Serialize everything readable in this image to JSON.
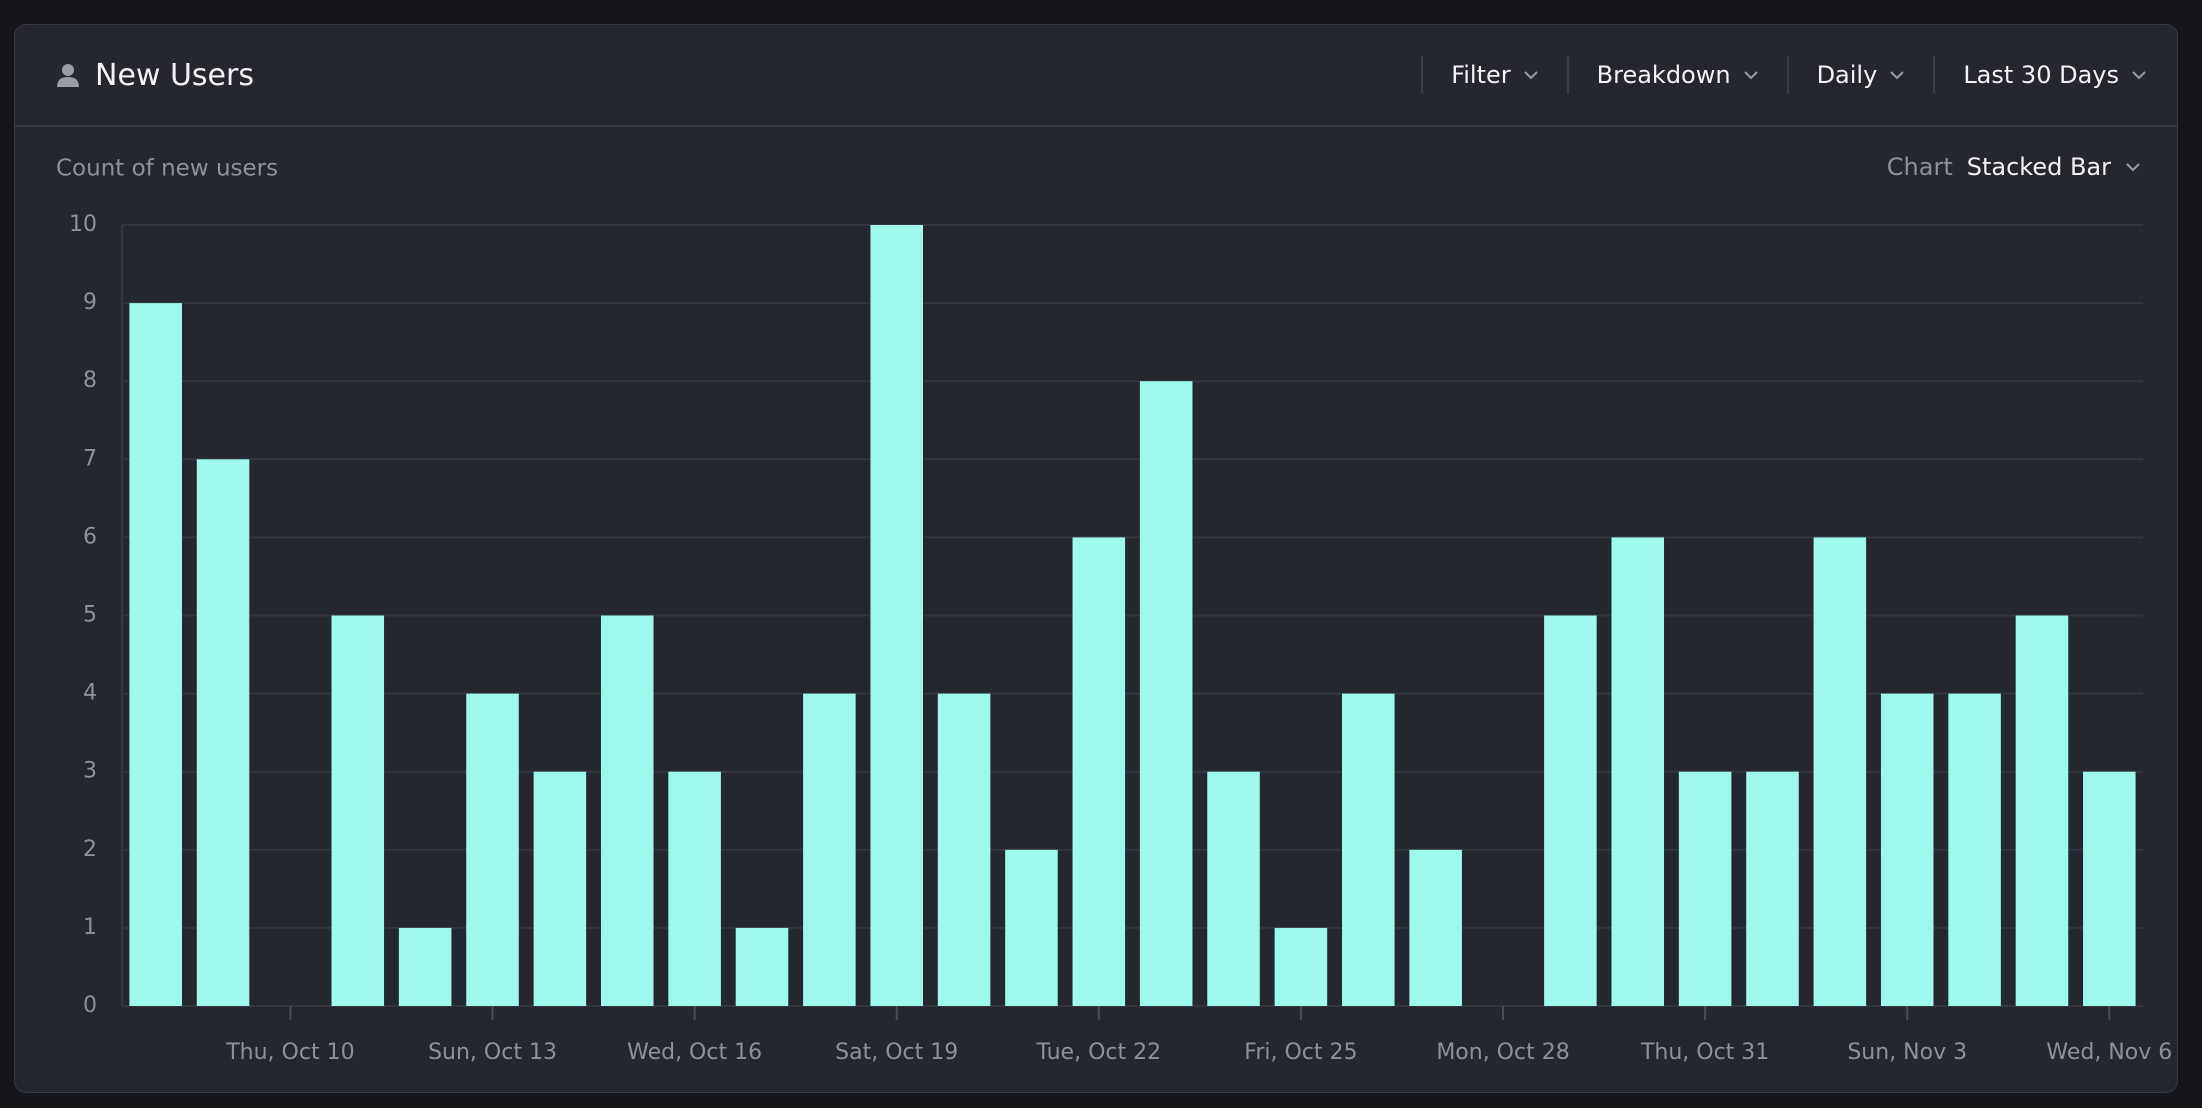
{
  "header": {
    "title": "New Users",
    "controls": [
      "Filter",
      "Breakdown",
      "Daily",
      "Last 30 Days"
    ]
  },
  "chart_selector": {
    "label": "Chart",
    "value": "Stacked Bar"
  },
  "chart_data": {
    "type": "bar",
    "title": "Count of new users",
    "categories": [
      null,
      null,
      "Thu, Oct 10",
      null,
      null,
      "Sun, Oct 13",
      null,
      null,
      "Wed, Oct 16",
      null,
      null,
      "Sat, Oct 19",
      null,
      null,
      "Tue, Oct 22",
      null,
      null,
      "Fri, Oct 25",
      null,
      null,
      "Mon, Oct 28",
      null,
      null,
      "Thu, Oct 31",
      null,
      null,
      "Sun, Nov 3",
      null,
      null,
      "Wed, Nov 6"
    ],
    "values": [
      9,
      7,
      0,
      5,
      1,
      4,
      3,
      5,
      3,
      1,
      4,
      10,
      4,
      2,
      6,
      8,
      3,
      1,
      4,
      2,
      0,
      5,
      6,
      3,
      3,
      6,
      4,
      4,
      5,
      3
    ],
    "color": "#9ef9ec",
    "ylim": [
      0,
      10
    ],
    "yticks": [
      0,
      1,
      2,
      3,
      4,
      5,
      6,
      7,
      8,
      9,
      10
    ],
    "grid": true
  }
}
